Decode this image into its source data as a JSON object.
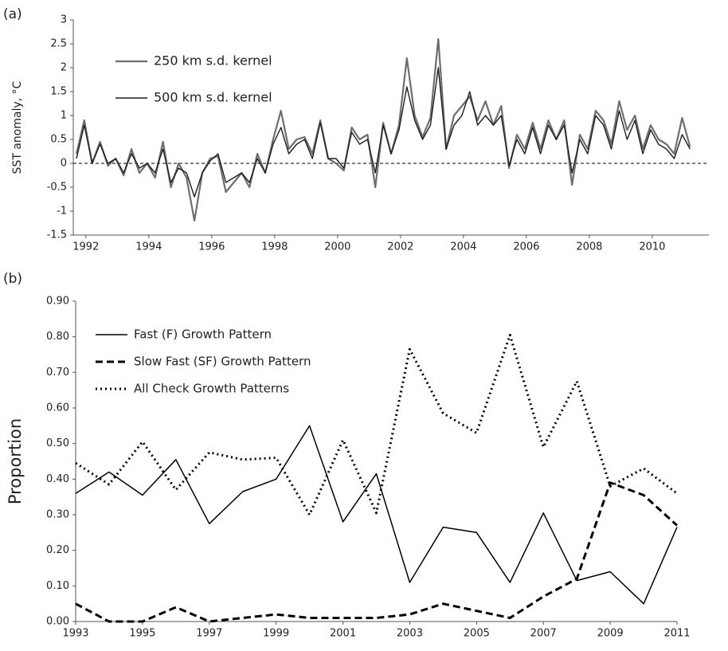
{
  "chart_data": [
    {
      "type": "line",
      "panel_label": "(a)",
      "y_label": "SST anomaly, °C",
      "x": [
        1991.7,
        1991.95,
        1992.2,
        1992.45,
        1992.7,
        1992.95,
        1993.2,
        1993.45,
        1993.7,
        1993.95,
        1994.2,
        1994.45,
        1994.7,
        1994.95,
        1995.2,
        1995.45,
        1995.7,
        1995.95,
        1996.2,
        1996.45,
        1996.7,
        1996.95,
        1997.2,
        1997.45,
        1997.7,
        1997.95,
        1998.2,
        1998.45,
        1998.7,
        1998.95,
        1999.2,
        1999.45,
        1999.7,
        1999.95,
        2000.2,
        2000.45,
        2000.7,
        2000.95,
        2001.2,
        2001.45,
        2001.7,
        2001.95,
        2002.2,
        2002.45,
        2002.7,
        2002.95,
        2003.2,
        2003.45,
        2003.7,
        2003.95,
        2004.2,
        2004.45,
        2004.7,
        2004.95,
        2005.2,
        2005.45,
        2005.7,
        2005.95,
        2006.2,
        2006.45,
        2006.7,
        2006.95,
        2007.2,
        2007.45,
        2007.7,
        2007.95,
        2008.2,
        2008.45,
        2008.7,
        2008.95,
        2009.2,
        2009.45,
        2009.7,
        2009.95,
        2010.2,
        2010.45,
        2010.7,
        2010.95,
        2011.2
      ],
      "series": [
        {
          "name": "250 km s.d. kernel",
          "color": "#6e6e6e",
          "width": 2.2,
          "dash": "solid",
          "values": [
            0.2,
            0.9,
            0.0,
            0.45,
            -0.05,
            0.1,
            -0.25,
            0.3,
            -0.2,
            0.0,
            -0.3,
            0.45,
            -0.5,
            0.0,
            -0.3,
            -1.2,
            -0.2,
            0.1,
            0.15,
            -0.6,
            -0.4,
            -0.2,
            -0.5,
            0.2,
            -0.2,
            0.5,
            1.1,
            0.3,
            0.5,
            0.55,
            0.2,
            0.9,
            0.1,
            0.0,
            -0.15,
            0.75,
            0.5,
            0.6,
            -0.5,
            0.85,
            0.2,
            0.8,
            2.2,
            1.0,
            0.55,
            0.95,
            2.6,
            0.3,
            1.0,
            1.2,
            1.4,
            0.9,
            1.3,
            0.8,
            1.2,
            -0.1,
            0.6,
            0.3,
            0.85,
            0.3,
            0.9,
            0.5,
            0.9,
            -0.45,
            0.6,
            0.3,
            1.1,
            0.9,
            0.4,
            1.3,
            0.7,
            1.0,
            0.3,
            0.8,
            0.5,
            0.4,
            0.2,
            0.95,
            0.35
          ]
        },
        {
          "name": "500 km s.d. kernel",
          "color": "#1e1e1e",
          "width": 1.4,
          "dash": "solid",
          "values": [
            0.1,
            0.8,
            0.0,
            0.4,
            0.0,
            0.1,
            -0.2,
            0.2,
            -0.1,
            0.0,
            -0.2,
            0.3,
            -0.4,
            -0.1,
            -0.2,
            -0.7,
            -0.2,
            0.05,
            0.2,
            -0.4,
            -0.3,
            -0.2,
            -0.4,
            0.1,
            -0.2,
            0.4,
            0.75,
            0.2,
            0.4,
            0.5,
            0.1,
            0.85,
            0.1,
            0.1,
            -0.1,
            0.65,
            0.4,
            0.5,
            -0.2,
            0.8,
            0.2,
            0.7,
            1.6,
            0.9,
            0.5,
            0.8,
            2.0,
            0.3,
            0.8,
            1.0,
            1.5,
            0.8,
            1.0,
            0.8,
            1.0,
            -0.05,
            0.5,
            0.2,
            0.75,
            0.2,
            0.8,
            0.5,
            0.8,
            -0.2,
            0.5,
            0.2,
            1.0,
            0.8,
            0.3,
            1.1,
            0.5,
            0.9,
            0.2,
            0.7,
            0.4,
            0.3,
            0.1,
            0.6,
            0.3
          ]
        }
      ],
      "xlim": [
        1991.6,
        2011.8
      ],
      "xticks": [
        1992,
        1994,
        1996,
        1998,
        2000,
        2002,
        2004,
        2006,
        2008,
        2010
      ],
      "ylim": [
        -1.5,
        3
      ],
      "yticks": [
        -1.5,
        -1,
        -0.5,
        0,
        0.5,
        1,
        1.5,
        2,
        2.5,
        3
      ],
      "zero_line": true
    },
    {
      "type": "line",
      "panel_label": "(b)",
      "y_label": "Proportion",
      "x": [
        1993,
        1994,
        1995,
        1996,
        1997,
        1998,
        1999,
        2000,
        2001,
        2002,
        2003,
        2004,
        2005,
        2006,
        2007,
        2008,
        2009,
        2010,
        2011
      ],
      "series": [
        {
          "name": "Fast (F) Growth Pattern",
          "color": "#000000",
          "width": 1.5,
          "dash": "solid",
          "values": [
            0.36,
            0.42,
            0.355,
            0.455,
            0.275,
            0.365,
            0.4,
            0.55,
            0.28,
            0.415,
            0.11,
            0.265,
            0.25,
            0.11,
            0.305,
            0.115,
            0.14,
            0.05,
            0.265
          ]
        },
        {
          "name": "Slow Fast (SF) Growth Pattern",
          "color": "#000000",
          "width": 3,
          "dash": "dashed",
          "values": [
            0.05,
            0,
            0,
            0.04,
            0,
            0.01,
            0.02,
            0.01,
            0.01,
            0.01,
            0.02,
            0.05,
            0.03,
            0.01,
            0.07,
            0.12,
            0.39,
            0.355,
            0.27
          ]
        },
        {
          "name": "All Check Growth Patterns",
          "color": "#000000",
          "width": 3,
          "dash": "dotted",
          "values": [
            0.445,
            0.385,
            0.505,
            0.37,
            0.475,
            0.455,
            0.46,
            0.3,
            0.51,
            0.305,
            0.765,
            0.585,
            0.53,
            0.805,
            0.49,
            0.675,
            0.38,
            0.43,
            0.36
          ]
        }
      ],
      "xlim": [
        1993,
        2011
      ],
      "xticks": [
        1993,
        1995,
        1997,
        1999,
        2001,
        2003,
        2005,
        2007,
        2009,
        2011
      ],
      "ylim": [
        0,
        0.9
      ],
      "yticks": [
        {
          "value": 0,
          "label": "0.00"
        },
        {
          "value": 0.1,
          "label": "0.10"
        },
        {
          "value": 0.2,
          "label": "0.20"
        },
        {
          "value": 0.3,
          "label": "0.30"
        },
        {
          "value": 0.4,
          "label": "0.40"
        },
        {
          "value": 0.5,
          "label": "0.50"
        },
        {
          "value": 0.6,
          "label": "0.60"
        },
        {
          "value": 0.7,
          "label": "0.70"
        },
        {
          "value": 0.8,
          "label": "0.80"
        },
        {
          "value": 0.9,
          "label": "0.90"
        }
      ]
    }
  ]
}
